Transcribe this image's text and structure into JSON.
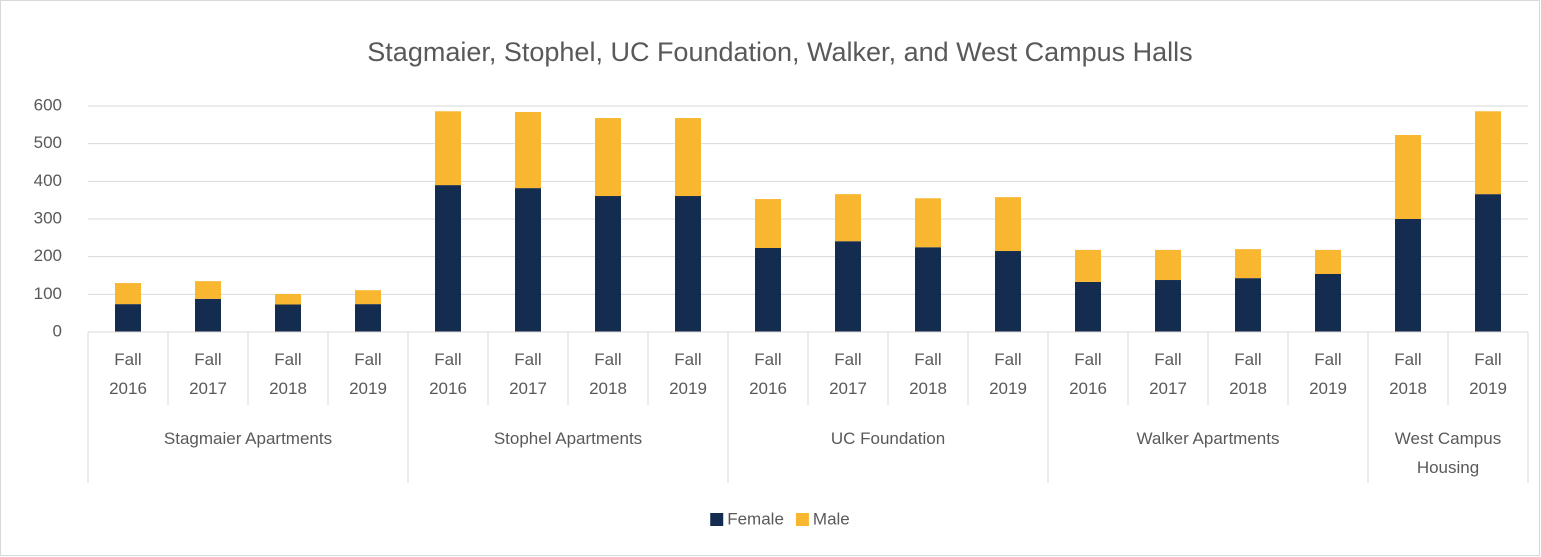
{
  "chart_data": {
    "type": "stacked_bar",
    "title": "Stagmaier, Stophel, UC Foundation, Walker, and West Campus Halls",
    "groups": [
      {
        "label": "Stagmaier Apartments",
        "categories": [
          "Fall 2016",
          "Fall 2017",
          "Fall 2018",
          "Fall 2019"
        ]
      },
      {
        "label": "Stophel Apartments",
        "categories": [
          "Fall 2016",
          "Fall 2017",
          "Fall 2018",
          "Fall 2019"
        ]
      },
      {
        "label": "UC Foundation",
        "categories": [
          "Fall 2016",
          "Fall 2017",
          "Fall 2018",
          "Fall 2019"
        ]
      },
      {
        "label": "Walker Apartments",
        "categories": [
          "Fall 2016",
          "Fall 2017",
          "Fall 2018",
          "Fall 2019"
        ]
      },
      {
        "label": "West Campus Housing",
        "categories": [
          "Fall 2018",
          "Fall 2019"
        ]
      }
    ],
    "series": [
      {
        "name": "Female",
        "color": "#132c4f",
        "values": [
          74,
          88,
          73,
          74,
          390,
          382,
          361,
          361,
          223,
          241,
          225,
          215,
          133,
          138,
          143,
          154,
          300,
          366
        ]
      },
      {
        "name": "Male",
        "color": "#f9b630",
        "values": [
          56,
          47,
          28,
          37,
          196,
          202,
          207,
          207,
          130,
          125,
          130,
          143,
          85,
          80,
          77,
          64,
          223,
          220
        ]
      }
    ],
    "ylim": [
      0,
      600
    ],
    "yticks": [
      0,
      100,
      200,
      300,
      400,
      500,
      600
    ],
    "grid": true,
    "legend": "bottom"
  }
}
